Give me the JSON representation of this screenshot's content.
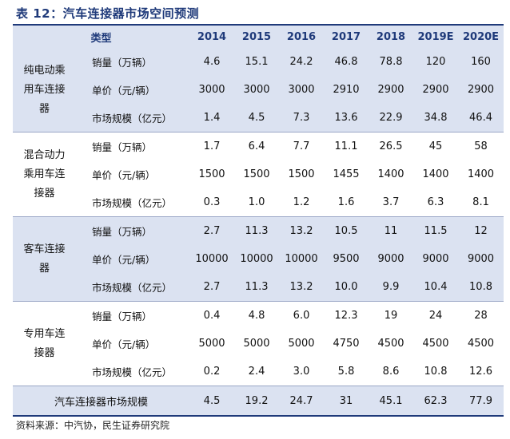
{
  "title": "表 12：汽车连接器市场空间预测",
  "header": {
    "category": "类型",
    "years": [
      "2014",
      "2015",
      "2016",
      "2017",
      "2018",
      "2019E",
      "2020E"
    ]
  },
  "groups": [
    {
      "name": "纯电动乘用车连接器",
      "rows": [
        {
          "metric": "销量（万辆）",
          "values": [
            "4.6",
            "15.1",
            "24.2",
            "46.8",
            "78.8",
            "120",
            "160"
          ]
        },
        {
          "metric": "单价（元/辆）",
          "values": [
            "3000",
            "3000",
            "3000",
            "2910",
            "2900",
            "2900",
            "2900"
          ]
        },
        {
          "metric": "市场规模（亿元）",
          "values": [
            "1.4",
            "4.5",
            "7.3",
            "13.6",
            "22.9",
            "34.8",
            "46.4"
          ]
        }
      ]
    },
    {
      "name": "混合动力乘用车连接器",
      "rows": [
        {
          "metric": "销量（万辆）",
          "values": [
            "1.7",
            "6.4",
            "7.7",
            "11.1",
            "26.5",
            "45",
            "58"
          ]
        },
        {
          "metric": "单价（元/辆）",
          "values": [
            "1500",
            "1500",
            "1500",
            "1455",
            "1400",
            "1400",
            "1400"
          ]
        },
        {
          "metric": "市场规模（亿元）",
          "values": [
            "0.3",
            "1.0",
            "1.2",
            "1.6",
            "3.7",
            "6.3",
            "8.1"
          ]
        }
      ]
    },
    {
      "name": "客车连接器",
      "rows": [
        {
          "metric": "销量（万辆）",
          "values": [
            "2.7",
            "11.3",
            "13.2",
            "10.5",
            "11",
            "11.5",
            "12"
          ]
        },
        {
          "metric": "单价（元/辆）",
          "values": [
            "10000",
            "10000",
            "10000",
            "9500",
            "9000",
            "9000",
            "9000"
          ]
        },
        {
          "metric": "市场规模（亿元）",
          "values": [
            "2.7",
            "11.3",
            "13.2",
            "10.0",
            "9.9",
            "10.4",
            "10.8"
          ]
        }
      ]
    },
    {
      "name": "专用车连接器",
      "rows": [
        {
          "metric": "销量（万辆）",
          "values": [
            "0.4",
            "4.8",
            "6.0",
            "12.3",
            "19",
            "24",
            "28"
          ]
        },
        {
          "metric": "单价（元/辆）",
          "values": [
            "5000",
            "5000",
            "5000",
            "4750",
            "4500",
            "4500",
            "4500"
          ]
        },
        {
          "metric": "市场规模（亿元）",
          "values": [
            "0.2",
            "2.4",
            "3.0",
            "5.8",
            "8.6",
            "10.8",
            "12.6"
          ]
        }
      ]
    }
  ],
  "total": {
    "label": "汽车连接器市场规模",
    "values": [
      "4.5",
      "19.2",
      "24.7",
      "31",
      "45.1",
      "62.3",
      "77.9"
    ]
  },
  "source": "资料来源：中汽协，民生证券研究院"
}
